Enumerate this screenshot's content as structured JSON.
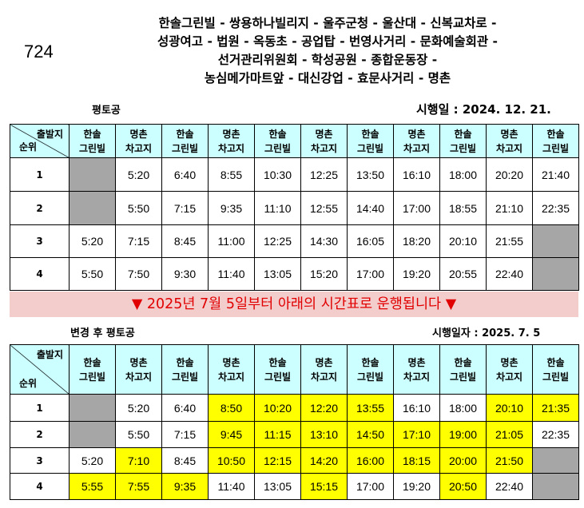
{
  "route_number": "724",
  "route_lines": [
    "한솔그린빌 - 쌍용하나빌리지 - 울주군청 - 울산대 - 신복교차로 -",
    "성광여고 - 법원 - 옥동초 - 공업탑 - 번영사거리 - 문화예술회관 -",
    "선거관리위원회 - 학성공원 - 종합운동장 -",
    "농심메가마트앞 - 대신강업 - 효문사거리 - 명촌"
  ],
  "table1": {
    "day_label": "평토공",
    "effective_date": "시행일 : 2024. 12. 21.",
    "corner_top": "출발지",
    "corner_bottom": "순위",
    "headers": [
      [
        "한솔",
        "그린빌"
      ],
      [
        "명촌",
        "차고지"
      ],
      [
        "한솔",
        "그린빌"
      ],
      [
        "명촌",
        "차고지"
      ],
      [
        "한솔",
        "그린빌"
      ],
      [
        "명촌",
        "차고지"
      ],
      [
        "한솔",
        "그린빌"
      ],
      [
        "명촌",
        "차고지"
      ],
      [
        "한솔",
        "그린빌"
      ],
      [
        "명촌",
        "차고지"
      ],
      [
        "한솔",
        "그린빌"
      ]
    ],
    "rows": [
      {
        "rank": "1",
        "cells": [
          "",
          "5:20",
          "6:40",
          "8:55",
          "10:30",
          "12:25",
          "13:50",
          "16:10",
          "18:00",
          "20:20",
          "21:40"
        ],
        "gray": [
          0
        ]
      },
      {
        "rank": "2",
        "cells": [
          "",
          "5:50",
          "7:15",
          "9:35",
          "11:10",
          "12:55",
          "14:40",
          "17:00",
          "18:55",
          "21:10",
          "22:35"
        ],
        "gray": [
          0
        ]
      },
      {
        "rank": "3",
        "cells": [
          "5:20",
          "7:15",
          "8:45",
          "11:00",
          "12:25",
          "14:30",
          "16:05",
          "18:20",
          "20:10",
          "21:55",
          ""
        ],
        "gray": [
          10
        ]
      },
      {
        "rank": "4",
        "cells": [
          "5:50",
          "7:50",
          "9:30",
          "11:40",
          "13:05",
          "15:20",
          "17:00",
          "19:20",
          "20:55",
          "22:40",
          ""
        ],
        "gray": [
          10
        ]
      }
    ]
  },
  "banner": "▼ 2025년 7월 5일부터 아래의 시간표로 운행됩니다 ▼",
  "table2": {
    "day_label": "변경 후 평토공",
    "effective_date": "시행일자 : 2025. 7. 5",
    "corner_top": "출발지",
    "corner_bottom": "순위",
    "headers": [
      [
        "한솔",
        "그린빌"
      ],
      [
        "명촌",
        "차고지"
      ],
      [
        "한솔",
        "그린빌"
      ],
      [
        "명촌",
        "차고지"
      ],
      [
        "한솔",
        "그린빌"
      ],
      [
        "명촌",
        "차고지"
      ],
      [
        "한솔",
        "그린빌"
      ],
      [
        "명촌",
        "차고지"
      ],
      [
        "한솔",
        "그린빌"
      ],
      [
        "명촌",
        "차고지"
      ],
      [
        "한솔",
        "그린빌"
      ]
    ],
    "rows": [
      {
        "rank": "1",
        "cells": [
          "",
          "5:20",
          "6:40",
          "8:50",
          "10:20",
          "12:20",
          "13:55",
          "16:10",
          "18:00",
          "20:10",
          "21:35"
        ],
        "gray": [
          0
        ],
        "yellow": [
          3,
          4,
          5,
          6,
          9,
          10
        ]
      },
      {
        "rank": "2",
        "cells": [
          "",
          "5:50",
          "7:15",
          "9:45",
          "11:15",
          "13:10",
          "14:50",
          "17:10",
          "19:00",
          "21:05",
          "22:35"
        ],
        "gray": [
          0
        ],
        "yellow": [
          3,
          4,
          5,
          6,
          7,
          8,
          9
        ]
      },
      {
        "rank": "3",
        "cells": [
          "5:20",
          "7:10",
          "8:45",
          "10:50",
          "12:15",
          "14:20",
          "16:00",
          "18:15",
          "20:00",
          "21:50",
          ""
        ],
        "gray": [
          10
        ],
        "yellow": [
          1,
          3,
          4,
          5,
          6,
          7,
          8,
          9
        ]
      },
      {
        "rank": "4",
        "cells": [
          "5:55",
          "7:55",
          "9:35",
          "11:40",
          "13:05",
          "15:15",
          "17:00",
          "19:20",
          "20:50",
          "22:40",
          ""
        ],
        "gray": [
          10
        ],
        "yellow": [
          0,
          1,
          2,
          5,
          8
        ]
      }
    ]
  },
  "colors": {
    "header_bg": "#ccffff",
    "gray_cell": "#a6a6a6",
    "changed_cell": "#ffff00",
    "banner_bg": "#f3cccc",
    "banner_text": "#e10000"
  }
}
